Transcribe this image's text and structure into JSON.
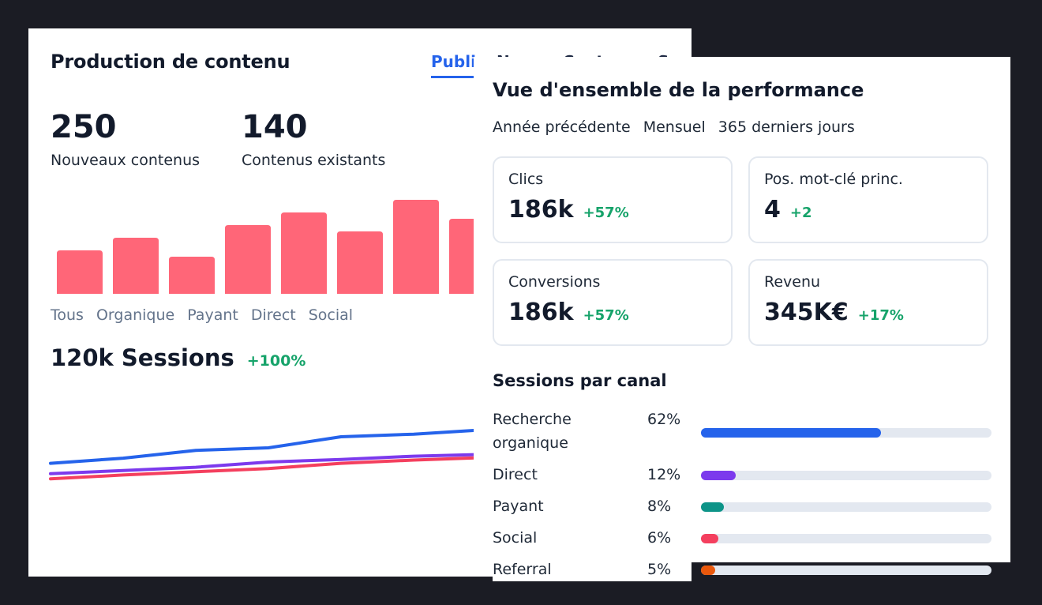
{
  "back_card": {
    "title": "Production de contenu",
    "tabs": [
      "Publi",
      "Nouv",
      "Contenu",
      "Sessions"
    ],
    "kpis": [
      {
        "value": "250",
        "label": "Nouveaux contenus"
      },
      {
        "value": "140",
        "label": "Contenus existants"
      }
    ],
    "bar_chart": {
      "type": "bar",
      "values": [
        55,
        71,
        47,
        87,
        103,
        79,
        119,
        95
      ],
      "color": "#ff6678",
      "ylim": [
        0,
        130
      ]
    },
    "legend": [
      "Tous",
      "Organique",
      "Payant",
      "Direct",
      "Social"
    ],
    "sessions": {
      "value": "120k Sessions",
      "delta": "+100%"
    },
    "line_chart": {
      "type": "line",
      "x": [
        0,
        1,
        2,
        3,
        4,
        5,
        6
      ],
      "series": [
        {
          "color": "#2563eb",
          "values": [
            48,
            56,
            68,
            72,
            89,
            93,
            100
          ]
        },
        {
          "color": "#7c3aed",
          "values": [
            32,
            37,
            42,
            50,
            54,
            59,
            62
          ]
        },
        {
          "color": "#f43f5e",
          "values": [
            24,
            30,
            35,
            40,
            48,
            53,
            57
          ]
        }
      ],
      "ylim": [
        0,
        100
      ]
    }
  },
  "front_card": {
    "title": "Vue d'ensemble de la performance",
    "filters": [
      "Année précédente",
      "Mensuel",
      "365 derniers jours"
    ],
    "metrics": [
      {
        "label": "Clics",
        "value": "186k",
        "delta": "+57%"
      },
      {
        "label": "Pos. mot-clé princ.",
        "value": "4",
        "delta": "+2"
      },
      {
        "label": "Conversions",
        "value": "186k",
        "delta": "+57%"
      },
      {
        "label": "Revenu",
        "value": "345K€",
        "delta": "+17%"
      }
    ],
    "canal_title": "Sessions par canal",
    "canals": [
      {
        "name": "Recherche organique",
        "pct": "62%",
        "fraction": 0.62,
        "color": "#2563eb"
      },
      {
        "name": "Direct",
        "pct": "12%",
        "fraction": 0.12,
        "color": "#7c3aed"
      },
      {
        "name": "Payant",
        "pct": "8%",
        "fraction": 0.08,
        "color": "#0d9488"
      },
      {
        "name": "Social",
        "pct": "6%",
        "fraction": 0.06,
        "color": "#f43f5e"
      },
      {
        "name": "Referral",
        "pct": "5%",
        "fraction": 0.05,
        "color": "#ea580c"
      }
    ]
  },
  "chart_data": [
    {
      "type": "bar",
      "values": [
        55,
        71,
        47,
        87,
        103,
        79,
        119,
        95
      ],
      "ylim": [
        0,
        130
      ]
    },
    {
      "type": "line",
      "x": [
        0,
        1,
        2,
        3,
        4,
        5,
        6
      ],
      "series": [
        {
          "values": [
            48,
            56,
            68,
            72,
            89,
            93,
            100
          ]
        },
        {
          "values": [
            32,
            37,
            42,
            50,
            54,
            59,
            62
          ]
        },
        {
          "values": [
            24,
            30,
            35,
            40,
            48,
            53,
            57
          ]
        }
      ],
      "ylim": [
        0,
        100
      ]
    }
  ]
}
